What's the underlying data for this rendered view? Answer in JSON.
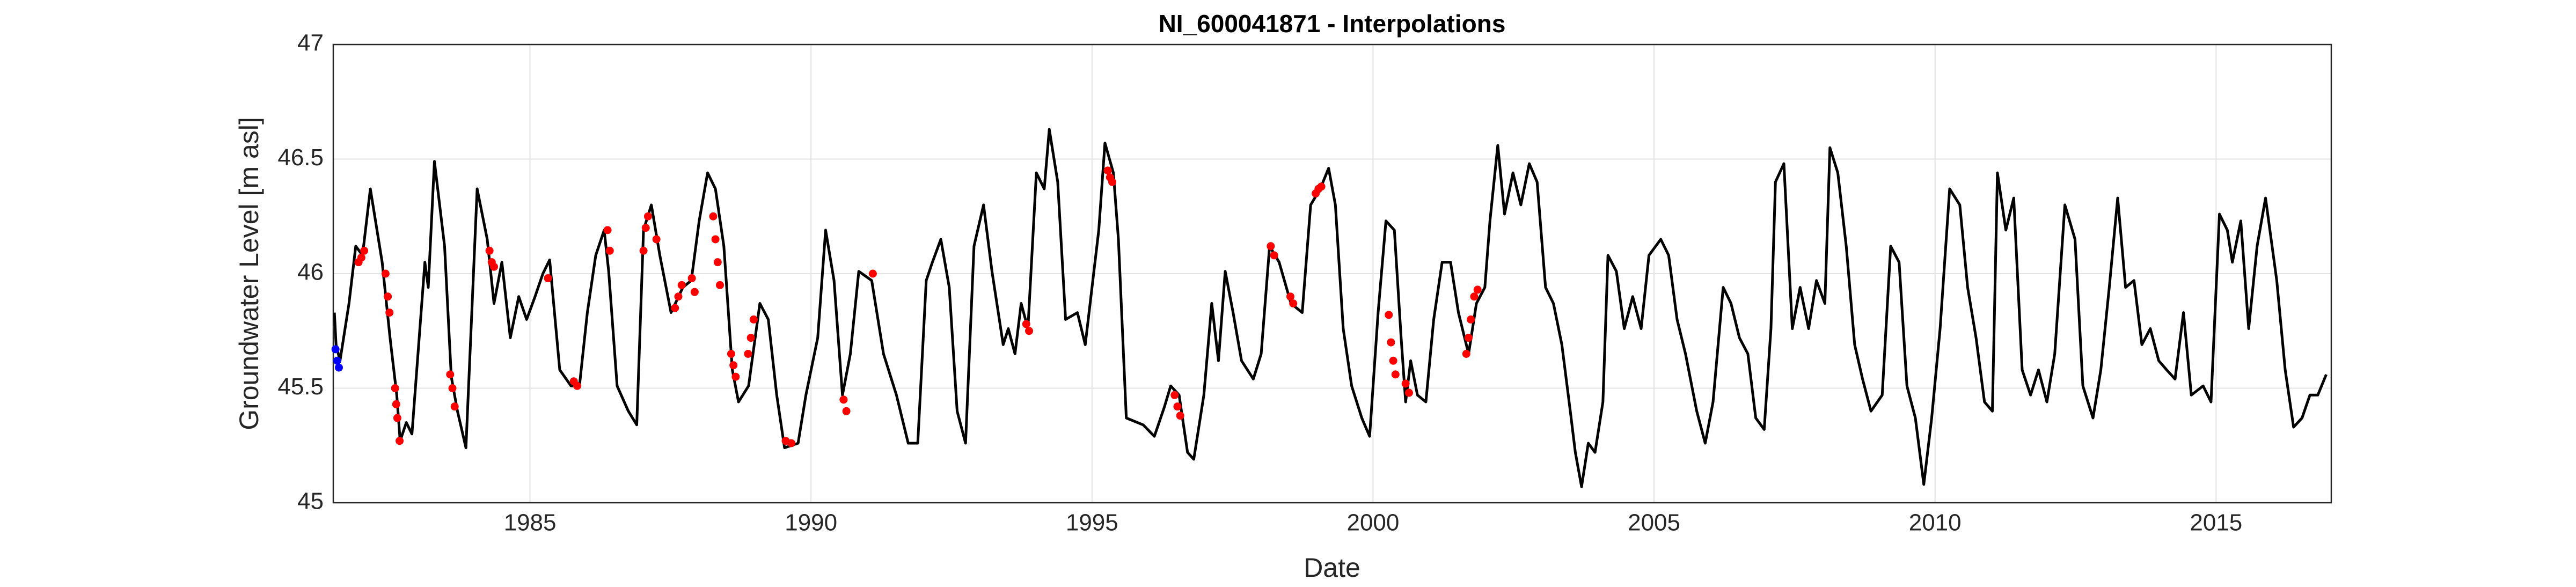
{
  "chart_data": {
    "type": "line",
    "title": "NI_600041871 - Interpolations",
    "xlabel": "Date",
    "ylabel": "Groundwater Level [m asl]",
    "xlim": [
      1981.5,
      2017.05
    ],
    "xticks": [
      1985,
      1990,
      1995,
      2000,
      2005,
      2010,
      2015
    ],
    "ylim": [
      45,
      47
    ],
    "yticks": [
      45,
      45.5,
      46,
      46.5,
      47
    ],
    "grid": true,
    "series": [
      {
        "mode": "line",
        "color": "#000000",
        "x": [
          1981.52,
          1981.55,
          1981.62,
          1981.78,
          1981.9,
          1982.02,
          1982.16,
          1982.37,
          1982.51,
          1982.63,
          1982.69,
          1982.8,
          1982.9,
          1983.13,
          1983.19,
          1983.3,
          1983.48,
          1983.6,
          1983.71,
          1983.86,
          1984.06,
          1984.24,
          1984.36,
          1984.5,
          1984.65,
          1984.8,
          1984.94,
          1985.09,
          1985.23,
          1985.35,
          1985.53,
          1985.73,
          1985.88,
          1986.02,
          1986.17,
          1986.32,
          1986.4,
          1986.55,
          1986.75,
          1986.9,
          1987.02,
          1987.16,
          1987.31,
          1987.51,
          1987.72,
          1987.87,
          1988.01,
          1988.16,
          1988.3,
          1988.45,
          1988.6,
          1988.71,
          1988.89,
          1989.09,
          1989.24,
          1989.39,
          1989.53,
          1989.77,
          1989.91,
          1990.12,
          1990.26,
          1990.41,
          1990.56,
          1990.7,
          1990.85,
          1991.08,
          1991.29,
          1991.52,
          1991.73,
          1991.9,
          1992.05,
          1992.16,
          1992.31,
          1992.46,
          1992.6,
          1992.75,
          1992.9,
          1993.07,
          1993.22,
          1993.42,
          1993.51,
          1993.63,
          1993.74,
          1993.86,
          1994.01,
          1994.15,
          1994.24,
          1994.39,
          1994.53,
          1994.74,
          1994.88,
          1995.12,
          1995.23,
          1995.38,
          1995.47,
          1995.61,
          1995.91,
          1996.11,
          1996.29,
          1996.4,
          1996.55,
          1996.7,
          1996.81,
          1996.99,
          1997.13,
          1997.25,
          1997.37,
          1997.51,
          1997.66,
          1997.87,
          1998.01,
          1998.16,
          1998.33,
          1998.54,
          1998.74,
          1998.89,
          1999.06,
          1999.21,
          1999.33,
          1999.47,
          1999.62,
          1999.8,
          1999.94,
          2000.09,
          2000.23,
          2000.38,
          2000.5,
          2000.58,
          2000.67,
          2000.79,
          2000.94,
          2001.08,
          2001.23,
          2001.38,
          2001.52,
          2001.7,
          2001.84,
          2001.99,
          2002.08,
          2002.22,
          2002.34,
          2002.49,
          2002.63,
          2002.78,
          2002.92,
          2003.07,
          2003.21,
          2003.36,
          2003.51,
          2003.6,
          2003.71,
          2003.83,
          2003.95,
          2004.09,
          2004.18,
          2004.33,
          2004.47,
          2004.62,
          2004.77,
          2004.91,
          2005.12,
          2005.26,
          2005.41,
          2005.56,
          2005.76,
          2005.91,
          2006.05,
          2006.23,
          2006.37,
          2006.52,
          2006.67,
          2006.81,
          2006.96,
          2007.08,
          2007.16,
          2007.31,
          2007.46,
          2007.6,
          2007.75,
          2007.89,
          2008.04,
          2008.13,
          2008.27,
          2008.42,
          2008.57,
          2008.71,
          2008.86,
          2009.06,
          2009.21,
          2009.36,
          2009.5,
          2009.65,
          2009.8,
          2009.94,
          2010.09,
          2010.26,
          2010.44,
          2010.58,
          2010.73,
          2010.88,
          2011.02,
          2011.11,
          2011.26,
          2011.4,
          2011.55,
          2011.7,
          2011.84,
          2011.99,
          2012.13,
          2012.31,
          2012.49,
          2012.63,
          2012.81,
          2012.95,
          2013.1,
          2013.25,
          2013.39,
          2013.54,
          2013.68,
          2013.83,
          2013.98,
          2014.12,
          2014.27,
          2014.42,
          2014.56,
          2014.77,
          2014.91,
          2015.06,
          2015.2,
          2015.29,
          2015.44,
          2015.58,
          2015.73,
          2015.88,
          2016.08,
          2016.23,
          2016.38,
          2016.53,
          2016.67,
          2016.81,
          2016.96
        ],
        "values": [
          45.83,
          45.69,
          45.62,
          45.87,
          46.12,
          46.08,
          46.37,
          46.05,
          45.72,
          45.47,
          45.27,
          45.35,
          45.3,
          46.05,
          45.94,
          46.49,
          46.12,
          45.55,
          45.4,
          45.24,
          46.37,
          46.15,
          45.87,
          46.05,
          45.72,
          45.9,
          45.8,
          45.9,
          46.0,
          46.06,
          45.58,
          45.51,
          45.51,
          45.83,
          46.08,
          46.19,
          46.01,
          45.51,
          45.4,
          45.34,
          46.19,
          46.3,
          46.08,
          45.83,
          45.94,
          45.97,
          46.23,
          46.44,
          46.37,
          46.12,
          45.58,
          45.44,
          45.51,
          45.87,
          45.8,
          45.47,
          45.24,
          45.26,
          45.47,
          45.72,
          46.19,
          45.97,
          45.47,
          45.65,
          46.01,
          45.97,
          45.65,
          45.47,
          45.26,
          45.26,
          45.97,
          46.05,
          46.15,
          45.94,
          45.4,
          45.26,
          46.12,
          46.3,
          46.01,
          45.69,
          45.76,
          45.65,
          45.87,
          45.76,
          46.44,
          46.37,
          46.63,
          46.4,
          45.8,
          45.83,
          45.69,
          46.19,
          46.57,
          46.44,
          46.15,
          45.37,
          45.34,
          45.29,
          45.42,
          45.51,
          45.47,
          45.22,
          45.19,
          45.47,
          45.87,
          45.62,
          46.01,
          45.83,
          45.62,
          45.54,
          45.65,
          46.12,
          46.05,
          45.87,
          45.83,
          46.3,
          46.37,
          46.46,
          46.3,
          45.76,
          45.51,
          45.37,
          45.29,
          45.83,
          46.23,
          46.19,
          45.72,
          45.44,
          45.62,
          45.47,
          45.44,
          45.8,
          46.05,
          46.05,
          45.83,
          45.65,
          45.87,
          45.94,
          46.23,
          46.56,
          46.26,
          46.44,
          46.3,
          46.48,
          46.4,
          45.94,
          45.87,
          45.69,
          45.4,
          45.22,
          45.07,
          45.26,
          45.22,
          45.44,
          46.08,
          46.01,
          45.76,
          45.9,
          45.76,
          46.08,
          46.15,
          46.08,
          45.8,
          45.65,
          45.4,
          45.26,
          45.44,
          45.94,
          45.87,
          45.72,
          45.65,
          45.37,
          45.32,
          45.76,
          46.4,
          46.48,
          45.76,
          45.94,
          45.76,
          45.97,
          45.87,
          46.55,
          46.44,
          46.12,
          45.69,
          45.54,
          45.4,
          45.47,
          46.12,
          46.05,
          45.51,
          45.37,
          45.08,
          45.37,
          45.76,
          46.37,
          46.3,
          45.94,
          45.72,
          45.44,
          45.4,
          46.44,
          46.19,
          46.33,
          45.58,
          45.47,
          45.58,
          45.44,
          45.65,
          46.3,
          46.15,
          45.51,
          45.37,
          45.58,
          45.94,
          46.33,
          45.94,
          45.97,
          45.69,
          45.76,
          45.62,
          45.58,
          45.54,
          45.83,
          45.47,
          45.51,
          45.44,
          46.26,
          46.19,
          46.05,
          46.23,
          45.76,
          46.12,
          46.33,
          45.97,
          45.58,
          45.33,
          45.37,
          45.47,
          45.47,
          45.56
        ]
      },
      {
        "mode": "markers",
        "color": "#ff0000",
        "x": [
          1981.95,
          1982.0,
          1982.05,
          1982.43,
          1982.47,
          1982.5,
          1982.6,
          1982.62,
          1982.64,
          1982.68,
          1983.58,
          1983.62,
          1983.66,
          1984.28,
          1984.32,
          1984.36,
          1985.32,
          1985.78,
          1985.84,
          1986.38,
          1986.42,
          1987.02,
          1987.06,
          1987.1,
          1987.25,
          1987.58,
          1987.64,
          1987.7,
          1987.88,
          1987.93,
          1988.26,
          1988.3,
          1988.34,
          1988.38,
          1988.58,
          1988.62,
          1988.66,
          1988.88,
          1988.93,
          1988.98,
          1989.55,
          1989.65,
          1990.58,
          1990.63,
          1991.1,
          1993.83,
          1993.88,
          1995.28,
          1995.32,
          1995.36,
          1996.47,
          1996.52,
          1996.57,
          1998.18,
          1998.24,
          1998.53,
          1998.58,
          1998.98,
          1999.03,
          1999.08,
          2000.28,
          2000.32,
          2000.36,
          2000.4,
          2000.58,
          2000.64,
          2001.66,
          2001.7,
          2001.74,
          2001.8,
          2001.86
        ],
        "values": [
          46.05,
          46.07,
          46.1,
          46.0,
          45.9,
          45.83,
          45.5,
          45.43,
          45.37,
          45.27,
          45.56,
          45.5,
          45.42,
          46.1,
          46.05,
          46.03,
          45.98,
          45.53,
          45.51,
          46.19,
          46.1,
          46.1,
          46.2,
          46.25,
          46.15,
          45.85,
          45.9,
          45.95,
          45.98,
          45.92,
          46.25,
          46.15,
          46.05,
          45.95,
          45.65,
          45.6,
          45.55,
          45.65,
          45.72,
          45.8,
          45.27,
          45.26,
          45.45,
          45.4,
          46.0,
          45.78,
          45.75,
          46.45,
          46.42,
          46.4,
          45.47,
          45.42,
          45.38,
          46.12,
          46.08,
          45.9,
          45.87,
          46.35,
          46.37,
          46.38,
          45.82,
          45.7,
          45.62,
          45.56,
          45.52,
          45.48,
          45.65,
          45.72,
          45.8,
          45.9,
          45.93
        ]
      },
      {
        "mode": "markers",
        "color": "#0000ff",
        "x": [
          1981.54,
          1981.57,
          1981.6
        ],
        "values": [
          45.67,
          45.62,
          45.59
        ]
      }
    ]
  }
}
